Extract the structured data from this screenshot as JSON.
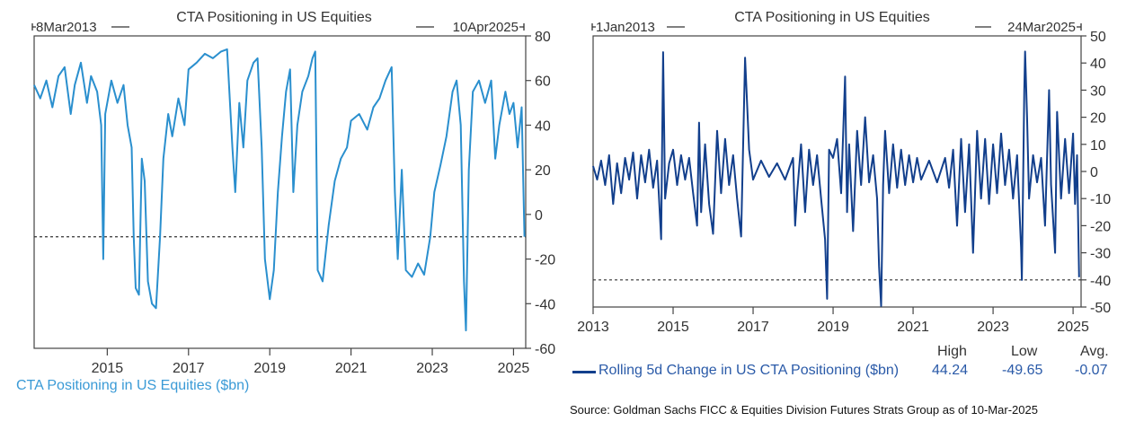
{
  "chart_data": [
    {
      "type": "line",
      "title": "CTA Positioning in US Equities",
      "start_label": "8Mar2013",
      "end_label": "10Apr2025",
      "xlabel": "",
      "ylabel": "",
      "xlim": [
        2013.2,
        2025.3
      ],
      "ylim": [
        -60,
        80
      ],
      "x_ticks": [
        "2015",
        "2017",
        "2019",
        "2021",
        "2023",
        "2025"
      ],
      "y_ticks": [
        "80",
        "60",
        "40",
        "20",
        "0",
        "-20",
        "-40",
        "-60"
      ],
      "reference_line": -10,
      "legend": "CTA Positioning in US Equities ($bn)",
      "legend_position": "bottom-left",
      "color": "#2a8fce",
      "series": [
        {
          "values": [
            [
              2013.2,
              58
            ],
            [
              2013.35,
              52
            ],
            [
              2013.5,
              60
            ],
            [
              2013.65,
              48
            ],
            [
              2013.8,
              62
            ],
            [
              2013.95,
              66
            ],
            [
              2014.1,
              45
            ],
            [
              2014.2,
              58
            ],
            [
              2014.35,
              68
            ],
            [
              2014.5,
              50
            ],
            [
              2014.6,
              62
            ],
            [
              2014.75,
              55
            ],
            [
              2014.85,
              40
            ],
            [
              2014.9,
              -20
            ],
            [
              2014.95,
              45
            ],
            [
              2015.1,
              60
            ],
            [
              2015.25,
              50
            ],
            [
              2015.4,
              58
            ],
            [
              2015.5,
              40
            ],
            [
              2015.6,
              30
            ],
            [
              2015.65,
              -10
            ],
            [
              2015.7,
              -33
            ],
            [
              2015.78,
              -36
            ],
            [
              2015.85,
              25
            ],
            [
              2015.92,
              15
            ],
            [
              2016.0,
              -30
            ],
            [
              2016.1,
              -40
            ],
            [
              2016.2,
              -42
            ],
            [
              2016.3,
              -10
            ],
            [
              2016.38,
              25
            ],
            [
              2016.5,
              45
            ],
            [
              2016.6,
              35
            ],
            [
              2016.75,
              52
            ],
            [
              2016.9,
              40
            ],
            [
              2017.0,
              65
            ],
            [
              2017.2,
              68
            ],
            [
              2017.4,
              72
            ],
            [
              2017.6,
              70
            ],
            [
              2017.8,
              73
            ],
            [
              2017.95,
              74
            ],
            [
              2018.08,
              30
            ],
            [
              2018.15,
              10
            ],
            [
              2018.25,
              50
            ],
            [
              2018.35,
              30
            ],
            [
              2018.45,
              60
            ],
            [
              2018.6,
              68
            ],
            [
              2018.7,
              70
            ],
            [
              2018.8,
              30
            ],
            [
              2018.88,
              -20
            ],
            [
              2019.0,
              -38
            ],
            [
              2019.1,
              -25
            ],
            [
              2019.2,
              10
            ],
            [
              2019.3,
              35
            ],
            [
              2019.4,
              55
            ],
            [
              2019.5,
              65
            ],
            [
              2019.58,
              10
            ],
            [
              2019.68,
              40
            ],
            [
              2019.8,
              55
            ],
            [
              2019.95,
              62
            ],
            [
              2020.05,
              70
            ],
            [
              2020.12,
              73
            ],
            [
              2020.18,
              -25
            ],
            [
              2020.3,
              -30
            ],
            [
              2020.45,
              -5
            ],
            [
              2020.6,
              15
            ],
            [
              2020.75,
              25
            ],
            [
              2020.9,
              30
            ],
            [
              2021.0,
              42
            ],
            [
              2021.2,
              45
            ],
            [
              2021.4,
              38
            ],
            [
              2021.55,
              48
            ],
            [
              2021.7,
              52
            ],
            [
              2021.85,
              60
            ],
            [
              2022.0,
              66
            ],
            [
              2022.08,
              10
            ],
            [
              2022.15,
              -20
            ],
            [
              2022.25,
              20
            ],
            [
              2022.35,
              -25
            ],
            [
              2022.5,
              -28
            ],
            [
              2022.65,
              -22
            ],
            [
              2022.8,
              -27
            ],
            [
              2022.95,
              -10
            ],
            [
              2023.05,
              10
            ],
            [
              2023.2,
              22
            ],
            [
              2023.35,
              35
            ],
            [
              2023.5,
              55
            ],
            [
              2023.6,
              60
            ],
            [
              2023.7,
              40
            ],
            [
              2023.78,
              -30
            ],
            [
              2023.83,
              -52
            ],
            [
              2023.9,
              20
            ],
            [
              2024.0,
              55
            ],
            [
              2024.15,
              60
            ],
            [
              2024.3,
              50
            ],
            [
              2024.45,
              60
            ],
            [
              2024.55,
              25
            ],
            [
              2024.65,
              40
            ],
            [
              2024.8,
              55
            ],
            [
              2024.9,
              45
            ],
            [
              2025.0,
              50
            ],
            [
              2025.1,
              30
            ],
            [
              2025.2,
              48
            ],
            [
              2025.27,
              -10
            ]
          ]
        }
      ]
    },
    {
      "type": "line",
      "title": "CTA Positioning in US Equities",
      "start_label": "1Jan2013",
      "end_label": "24Mar2025",
      "xlabel": "",
      "ylabel": "",
      "xlim": [
        2013.0,
        2025.2
      ],
      "ylim": [
        -50,
        50
      ],
      "x_ticks": [
        "2013",
        "2015",
        "2017",
        "2019",
        "2021",
        "2023",
        "2025"
      ],
      "y_ticks": [
        "50",
        "40",
        "30",
        "20",
        "10",
        "0",
        "-10",
        "-20",
        "-30",
        "-40",
        "-50"
      ],
      "reference_line": -40,
      "legend": "Rolling 5d Change in US CTA Positioning ($bn)",
      "legend_position": "bottom",
      "stats_headers": [
        "High",
        "Low",
        "Avg."
      ],
      "stats_values": [
        "44.24",
        "-49.65",
        "-0.07"
      ],
      "color": "#123f8c",
      "series": [
        {
          "values": [
            [
              2013.0,
              2
            ],
            [
              2013.1,
              -3
            ],
            [
              2013.2,
              4
            ],
            [
              2013.3,
              -5
            ],
            [
              2013.4,
              6
            ],
            [
              2013.5,
              -12
            ],
            [
              2013.6,
              3
            ],
            [
              2013.7,
              -8
            ],
            [
              2013.8,
              5
            ],
            [
              2013.9,
              -3
            ],
            [
              2014.0,
              7
            ],
            [
              2014.1,
              -10
            ],
            [
              2014.2,
              6
            ],
            [
              2014.3,
              -4
            ],
            [
              2014.4,
              8
            ],
            [
              2014.5,
              -6
            ],
            [
              2014.6,
              4
            ],
            [
              2014.7,
              -25
            ],
            [
              2014.75,
              44
            ],
            [
              2014.8,
              -10
            ],
            [
              2014.9,
              3
            ],
            [
              2015.0,
              8
            ],
            [
              2015.1,
              -5
            ],
            [
              2015.2,
              6
            ],
            [
              2015.3,
              -3
            ],
            [
              2015.4,
              5
            ],
            [
              2015.5,
              -8
            ],
            [
              2015.6,
              -20
            ],
            [
              2015.65,
              18
            ],
            [
              2015.7,
              -15
            ],
            [
              2015.8,
              10
            ],
            [
              2015.9,
              -12
            ],
            [
              2016.0,
              -23
            ],
            [
              2016.1,
              15
            ],
            [
              2016.2,
              -8
            ],
            [
              2016.3,
              12
            ],
            [
              2016.4,
              -5
            ],
            [
              2016.5,
              6
            ],
            [
              2016.6,
              -10
            ],
            [
              2016.7,
              -24
            ],
            [
              2016.8,
              42
            ],
            [
              2016.9,
              8
            ],
            [
              2017.0,
              -3
            ],
            [
              2017.2,
              4
            ],
            [
              2017.4,
              -2
            ],
            [
              2017.6,
              3
            ],
            [
              2017.8,
              -3
            ],
            [
              2018.0,
              5
            ],
            [
              2018.05,
              -20
            ],
            [
              2018.1,
              -8
            ],
            [
              2018.2,
              10
            ],
            [
              2018.3,
              -15
            ],
            [
              2018.4,
              8
            ],
            [
              2018.5,
              -5
            ],
            [
              2018.6,
              6
            ],
            [
              2018.7,
              -10
            ],
            [
              2018.8,
              -25
            ],
            [
              2018.85,
              -47
            ],
            [
              2018.9,
              8
            ],
            [
              2019.0,
              5
            ],
            [
              2019.1,
              12
            ],
            [
              2019.2,
              -8
            ],
            [
              2019.3,
              35
            ],
            [
              2019.35,
              -15
            ],
            [
              2019.4,
              10
            ],
            [
              2019.5,
              -22
            ],
            [
              2019.6,
              15
            ],
            [
              2019.7,
              -5
            ],
            [
              2019.8,
              20
            ],
            [
              2019.9,
              -4
            ],
            [
              2020.0,
              6
            ],
            [
              2020.1,
              -10
            ],
            [
              2020.15,
              -35
            ],
            [
              2020.2,
              -49.65
            ],
            [
              2020.25,
              -5
            ],
            [
              2020.3,
              15
            ],
            [
              2020.4,
              -8
            ],
            [
              2020.5,
              10
            ],
            [
              2020.6,
              -6
            ],
            [
              2020.7,
              8
            ],
            [
              2020.8,
              -5
            ],
            [
              2020.9,
              6
            ],
            [
              2021.0,
              -4
            ],
            [
              2021.1,
              5
            ],
            [
              2021.2,
              -3
            ],
            [
              2021.4,
              4
            ],
            [
              2021.6,
              -4
            ],
            [
              2021.8,
              5
            ],
            [
              2021.9,
              -6
            ],
            [
              2022.0,
              8
            ],
            [
              2022.1,
              -20
            ],
            [
              2022.2,
              12
            ],
            [
              2022.3,
              -15
            ],
            [
              2022.4,
              10
            ],
            [
              2022.5,
              -30
            ],
            [
              2022.6,
              15
            ],
            [
              2022.7,
              -10
            ],
            [
              2022.8,
              12
            ],
            [
              2022.9,
              -12
            ],
            [
              2023.0,
              10
            ],
            [
              2023.1,
              -8
            ],
            [
              2023.2,
              14
            ],
            [
              2023.3,
              -5
            ],
            [
              2023.4,
              8
            ],
            [
              2023.5,
              -10
            ],
            [
              2023.6,
              6
            ],
            [
              2023.7,
              -28
            ],
            [
              2023.72,
              -40
            ],
            [
              2023.78,
              30
            ],
            [
              2023.8,
              44.24
            ],
            [
              2023.85,
              20
            ],
            [
              2023.9,
              -10
            ],
            [
              2024.0,
              6
            ],
            [
              2024.1,
              -4
            ],
            [
              2024.2,
              5
            ],
            [
              2024.3,
              -20
            ],
            [
              2024.4,
              30
            ],
            [
              2024.45,
              -5
            ],
            [
              2024.55,
              -30
            ],
            [
              2024.6,
              22
            ],
            [
              2024.7,
              -10
            ],
            [
              2024.8,
              12
            ],
            [
              2024.9,
              -8
            ],
            [
              2025.0,
              14
            ],
            [
              2025.05,
              -12
            ],
            [
              2025.1,
              6
            ],
            [
              2025.15,
              -39
            ]
          ]
        }
      ]
    }
  ],
  "source": "Source: Goldman Sachs FICC & Equities Division Futures Strats Group as of 10-Mar-2025"
}
